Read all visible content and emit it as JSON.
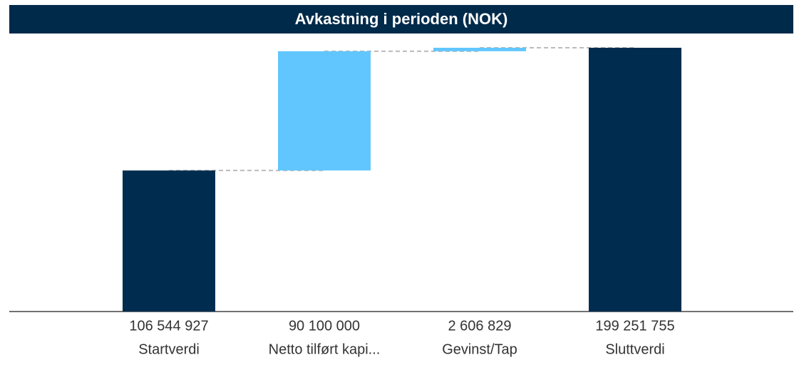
{
  "chart_data": {
    "type": "waterfall",
    "title": "Avkastning i perioden (NOK)",
    "categories": [
      "Startverdi",
      "Netto tilført kapi...",
      "Gevinst/Tap",
      "Sluttverdi"
    ],
    "values": [
      106544927,
      90100000,
      2606829,
      199251755
    ],
    "value_labels": [
      "106 544 927",
      "90 100 000",
      "2 606 829",
      "199 251 755"
    ],
    "measures": [
      "absolute",
      "relative",
      "relative",
      "total"
    ],
    "colors": {
      "absolute": "#002d4f",
      "relative": "#62c6fe",
      "total": "#002d4f"
    },
    "connector_color": "#bbbbbb"
  }
}
